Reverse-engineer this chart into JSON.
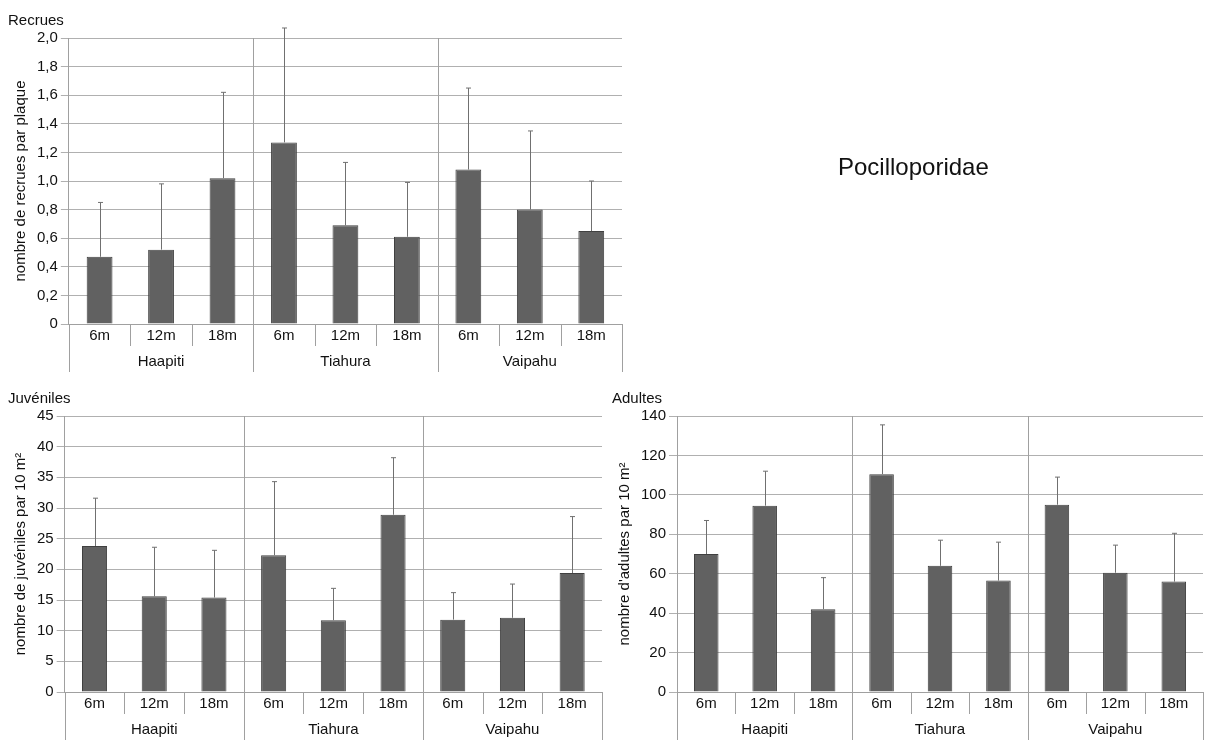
{
  "chart_data": [
    {
      "type": "bar",
      "title": "Recrues",
      "ylabel": "nombre de recrues par plaque",
      "categories": [
        "6m",
        "12m",
        "18m",
        "6m",
        "12m",
        "18m",
        "6m",
        "12m",
        "18m"
      ],
      "annotations": [
        "Haapiti",
        "Tiahura",
        "Vaipahu"
      ],
      "series": [
        {
          "color": "#616161",
          "values": [
            0.47,
            0.52,
            1.02,
            1.27,
            0.69,
            0.61,
            1.08,
            0.8,
            0.65
          ],
          "errors": [
            [
              0.47,
              0.85
            ],
            [
              0.52,
              0.98
            ],
            [
              1.02,
              1.62
            ],
            [
              1.27,
              2.07
            ],
            [
              0.69,
              1.13
            ],
            [
              0.61,
              0.99
            ],
            [
              1.08,
              1.65
            ],
            [
              0.8,
              1.35
            ],
            [
              0.65,
              1.0
            ]
          ]
        }
      ],
      "ylim": [
        0,
        2
      ],
      "yticks": [
        0,
        {
          "value": 0.2,
          "label": "0,2"
        },
        {
          "value": 0.4,
          "label": "0,4"
        },
        {
          "value": 0.6,
          "label": "0,6"
        },
        {
          "value": 0.8,
          "label": "0,8"
        },
        {
          "value": 1,
          "label": "1,0"
        },
        {
          "value": 1.2,
          "label": "1,2"
        },
        {
          "value": 1.4,
          "label": "1,4"
        },
        {
          "value": 1.6,
          "label": "1,6"
        },
        {
          "value": 1.8,
          "label": "1,8"
        },
        {
          "value": 2,
          "label": "2,0"
        }
      ],
      "grid": "y",
      "legend": false
    },
    {
      "type": "other",
      "title": "Pocilloporidae"
    },
    {
      "type": "bar",
      "title": "Juvéniles",
      "ylabel": "nombre de juvéniles par 10 m²",
      "categories": [
        "6m",
        "12m",
        "18m",
        "6m",
        "12m",
        "18m",
        "6m",
        "12m",
        "18m"
      ],
      "annotations": [
        "Haapiti",
        "Tiahura",
        "Vaipahu"
      ],
      "series": [
        {
          "color": "#616161",
          "values": [
            23.8,
            15.6,
            15.4,
            22.3,
            11.7,
            28.9,
            11.8,
            12.1,
            19.4
          ],
          "errors": [
            [
              23.8,
              31.6
            ],
            [
              15.6,
              23.6
            ],
            [
              15.4,
              23.1
            ],
            [
              22.3,
              34.3
            ],
            [
              11.7,
              16.9
            ],
            [
              28.9,
              38.2
            ],
            [
              11.8,
              16.2
            ],
            [
              12.1,
              17.6
            ],
            [
              19.4,
              28.6
            ]
          ]
        }
      ],
      "ylim": [
        0,
        45
      ],
      "yticks": [
        0,
        5,
        10,
        15,
        20,
        25,
        30,
        35,
        40,
        45
      ],
      "grid": "y",
      "legend": false
    },
    {
      "type": "bar",
      "title": "Adultes",
      "ylabel": "nombre d'adultes par 10 m²",
      "categories": [
        "6m",
        "12m",
        "18m",
        "6m",
        "12m",
        "18m",
        "6m",
        "12m",
        "18m"
      ],
      "annotations": [
        "Haapiti",
        "Tiahura",
        "Vaipahu"
      ],
      "series": [
        {
          "color": "#616161",
          "values": [
            70,
            94.5,
            42,
            110.5,
            64,
            56.5,
            95,
            60.5,
            56
          ],
          "errors": [
            [
              70,
              87
            ],
            [
              94.5,
              112
            ],
            [
              42,
              58
            ],
            [
              110.5,
              135.5
            ],
            [
              64,
              77
            ],
            [
              56.5,
              76
            ],
            [
              95,
              109
            ],
            [
              60.5,
              74.5
            ],
            [
              56,
              80.5
            ]
          ]
        }
      ],
      "ylim": [
        0,
        140
      ],
      "yticks": [
        0,
        20,
        40,
        60,
        80,
        100,
        120,
        140
      ],
      "grid": "y",
      "legend": false
    }
  ]
}
